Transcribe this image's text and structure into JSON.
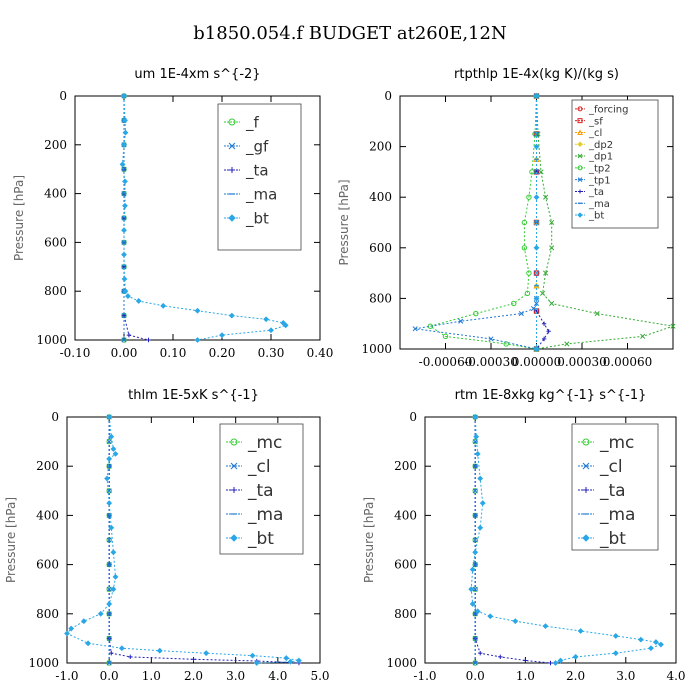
{
  "figure": {
    "title": "b1850.054.f  BUDGET at260E,12N"
  },
  "chart_data": [
    {
      "type": "line",
      "title": "um   1E-4xm s^{-2}",
      "ylabel": "Pressure [hPa]",
      "xlim": [
        -0.1,
        0.4
      ],
      "ylim": [
        1000,
        0
      ],
      "xticks": [
        "-0.10",
        "0.00",
        "0.10",
        "0.20",
        "0.30",
        "0.40"
      ],
      "yticks": [
        "0",
        "200",
        "400",
        "600",
        "800",
        "1000"
      ],
      "legend_position": "top-right",
      "series": [
        {
          "name": "_f",
          "color": "#33cc33",
          "marker": "circle",
          "x": [
            0.0,
            0.0,
            0.0,
            0.0,
            0.0,
            0.0,
            0.0,
            0.0,
            0.0,
            0.0,
            0.0
          ],
          "y": [
            0,
            100,
            200,
            300,
            400,
            500,
            600,
            700,
            800,
            900,
            1000
          ]
        },
        {
          "name": "_gf",
          "color": "#1f77d4",
          "marker": "x",
          "x": [
            0.0,
            0.0,
            0.0,
            0.0,
            0.0,
            0.0,
            0.0,
            0.0,
            0.0,
            0.0,
            0.0
          ],
          "y": [
            0,
            100,
            200,
            300,
            400,
            500,
            600,
            700,
            800,
            900,
            1000
          ]
        },
        {
          "name": "_ta",
          "color": "#2222bb",
          "marker": "plus",
          "x": [
            0.0,
            0.0,
            0.0,
            0.0,
            0.0,
            0.0,
            0.0,
            0.0,
            0.0,
            0.0,
            0.01,
            0.05
          ],
          "y": [
            0,
            100,
            200,
            300,
            400,
            500,
            600,
            700,
            800,
            900,
            980,
            1000
          ]
        },
        {
          "name": "_ma",
          "color": "#1f77d4",
          "marker": "dash",
          "x": [
            0.0,
            0.0,
            0.0,
            0.0,
            0.0,
            0.0
          ],
          "y": [
            0,
            200,
            400,
            600,
            800,
            1000
          ]
        },
        {
          "name": "_bt",
          "color": "#2aa7e6",
          "marker": "diamond",
          "x": [
            0.0,
            0.002,
            0.003,
            0.0,
            -0.003,
            0.002,
            0.002,
            0.0,
            0.0,
            0.001,
            0.003,
            0.008,
            0.03,
            0.08,
            0.15,
            0.22,
            0.29,
            0.325,
            0.33,
            0.3,
            0.2,
            0.15
          ],
          "y": [
            0,
            100,
            150,
            200,
            280,
            350,
            450,
            550,
            650,
            750,
            800,
            820,
            840,
            860,
            880,
            900,
            915,
            930,
            940,
            960,
            980,
            1000
          ]
        }
      ]
    },
    {
      "type": "line",
      "title": "rtpthlp   1E-4x(kg K)/(kg s)",
      "ylabel": "Pressure [hPa]",
      "xlim": [
        -0.0009,
        0.0009
      ],
      "ylim": [
        1000,
        0
      ],
      "xticks": [
        "-0.00060",
        "-0.00030",
        "0.00000",
        "0.00030",
        "0.00060"
      ],
      "yticks": [
        "0",
        "200",
        "400",
        "600",
        "800",
        "1000"
      ],
      "legend_position": "top-right",
      "series": [
        {
          "name": "_forcing",
          "color": "#dd2222",
          "marker": "circle",
          "x": [
            0,
            0,
            0,
            0,
            0,
            0,
            0
          ],
          "y": [
            0,
            150,
            300,
            500,
            700,
            850,
            1000
          ]
        },
        {
          "name": "_sf",
          "color": "#dd2222",
          "marker": "square",
          "x": [
            0,
            0,
            0,
            0,
            0,
            0,
            0
          ],
          "y": [
            0,
            150,
            300,
            500,
            700,
            850,
            1000
          ]
        },
        {
          "name": "_cl",
          "color": "#ff9900",
          "marker": "triangle",
          "x": [
            0,
            0,
            0,
            0,
            0
          ],
          "y": [
            0,
            250,
            500,
            750,
            1000
          ]
        },
        {
          "name": "_dp2",
          "color": "#ddcc33",
          "marker": "diamond",
          "x": [
            0,
            0,
            0,
            0,
            0
          ],
          "y": [
            0,
            250,
            500,
            750,
            1000
          ]
        },
        {
          "name": "_dp1",
          "color": "#33aa33",
          "marker": "x",
          "x": [
            0.0,
            1e-05,
            3e-05,
            6e-05,
            0.0001,
            0.0001,
            6e-05,
            4e-05,
            0.0001,
            0.0004,
            0.0009,
            0.0007,
            0.0002,
            0.0
          ],
          "y": [
            0,
            150,
            300,
            400,
            500,
            600,
            700,
            780,
            820,
            860,
            910,
            950,
            980,
            1000
          ]
        },
        {
          "name": "_tp2",
          "color": "#33cc33",
          "marker": "circle",
          "x": [
            0.0,
            -1e-05,
            -3e-05,
            -5e-05,
            -8e-05,
            -8e-05,
            -5e-05,
            -6e-05,
            -0.00015,
            -0.0004,
            -0.0007,
            -0.0006,
            -0.0002,
            0.0
          ],
          "y": [
            0,
            150,
            300,
            400,
            500,
            600,
            700,
            780,
            820,
            860,
            910,
            950,
            980,
            1000
          ]
        },
        {
          "name": "_tp1",
          "color": "#1f77d4",
          "marker": "x",
          "x": [
            0.0,
            0.0,
            0.0,
            0.0,
            0.0,
            0.0,
            0.0,
            -2e-05,
            -0.0001,
            -0.0005,
            -0.0008,
            -0.0003,
            0.0
          ],
          "y": [
            0,
            150,
            300,
            500,
            700,
            800,
            820,
            840,
            860,
            890,
            920,
            960,
            1000
          ]
        },
        {
          "name": "_ta",
          "color": "#2222bb",
          "marker": "plus",
          "x": [
            0.0,
            0.0,
            0.0,
            0.0,
            5e-05,
            8e-05,
            5e-05,
            0.0
          ],
          "y": [
            0,
            300,
            600,
            850,
            900,
            930,
            960,
            1000
          ]
        },
        {
          "name": "_ma",
          "color": "#1f77d4",
          "marker": "dash",
          "x": [
            0,
            0,
            0,
            0,
            0
          ],
          "y": [
            0,
            250,
            500,
            750,
            1000
          ]
        },
        {
          "name": "_bt",
          "color": "#2aa7e6",
          "marker": "diamond",
          "x": [
            0,
            0,
            0,
            0,
            0,
            0
          ],
          "y": [
            0,
            200,
            400,
            600,
            800,
            1000
          ]
        }
      ]
    },
    {
      "type": "line",
      "title": "thlm   1E-5xK  s^{-1}",
      "ylabel": "Pressure [hPa]",
      "xlim": [
        -1.0,
        5.0
      ],
      "ylim": [
        1000,
        0
      ],
      "xticks": [
        "-1.0",
        "0.0",
        "1.0",
        "2.0",
        "3.0",
        "4.0",
        "5.0"
      ],
      "yticks": [
        "0",
        "200",
        "400",
        "600",
        "800",
        "1000"
      ],
      "legend_position": "top-right",
      "series": [
        {
          "name": "_mc",
          "color": "#33cc33",
          "marker": "circle",
          "x": [
            0,
            0,
            0,
            0,
            0,
            0,
            0,
            0,
            0,
            0,
            0
          ],
          "y": [
            0,
            100,
            200,
            300,
            400,
            500,
            600,
            700,
            800,
            900,
            1000
          ]
        },
        {
          "name": "_cl",
          "color": "#1f77d4",
          "marker": "x",
          "x": [
            0,
            0,
            0,
            0,
            0,
            0,
            0,
            0,
            0,
            0,
            0
          ],
          "y": [
            0,
            100,
            200,
            300,
            400,
            500,
            600,
            700,
            800,
            900,
            1000
          ]
        },
        {
          "name": "_ta",
          "color": "#2222bb",
          "marker": "plus",
          "x": [
            0.0,
            0.0,
            0.0,
            0.0,
            0.0,
            0.0,
            0.05,
            0.5,
            2.0,
            3.5,
            4.5
          ],
          "y": [
            0,
            200,
            400,
            600,
            800,
            900,
            960,
            975,
            985,
            992,
            1000
          ]
        },
        {
          "name": "_ma",
          "color": "#1f77d4",
          "marker": "dash",
          "x": [
            0,
            0,
            0,
            0,
            0,
            0
          ],
          "y": [
            0,
            200,
            400,
            600,
            800,
            1000
          ]
        },
        {
          "name": "_bt",
          "color": "#2aa7e6",
          "marker": "diamond",
          "x": [
            0.0,
            0.05,
            0.1,
            0.15,
            0.0,
            -0.05,
            0.0,
            0.05,
            0.1,
            0.15,
            0.1,
            0.0,
            -0.2,
            -0.6,
            -0.9,
            -1.0,
            -0.5,
            0.3,
            1.2,
            2.3,
            3.4,
            4.2,
            4.5,
            4.3,
            3.5
          ],
          "y": [
            0,
            80,
            130,
            150,
            170,
            250,
            350,
            450,
            550,
            650,
            700,
            760,
            800,
            830,
            860,
            880,
            920,
            940,
            950,
            960,
            970,
            980,
            990,
            995,
            1000
          ]
        }
      ]
    },
    {
      "type": "line",
      "title": "rtm   1E-8xkg  kg^{-1} s^{-1}",
      "ylabel": "Pressure [hPa]",
      "xlim": [
        -1.0,
        4.0
      ],
      "ylim": [
        1000,
        0
      ],
      "xticks": [
        "-1.0",
        "0.0",
        "1.0",
        "2.0",
        "3.0",
        "4.0"
      ],
      "yticks": [
        "0",
        "200",
        "400",
        "600",
        "800",
        "1000"
      ],
      "legend_position": "top-right",
      "series": [
        {
          "name": "_mc",
          "color": "#33cc33",
          "marker": "circle",
          "x": [
            0,
            0,
            0,
            0,
            0,
            0,
            0,
            0,
            0,
            0,
            0
          ],
          "y": [
            0,
            100,
            200,
            300,
            400,
            500,
            600,
            700,
            800,
            900,
            1000
          ]
        },
        {
          "name": "_cl",
          "color": "#1f77d4",
          "marker": "x",
          "x": [
            0,
            0,
            0,
            0,
            0,
            0,
            0,
            0,
            0,
            0,
            0
          ],
          "y": [
            0,
            100,
            200,
            300,
            400,
            500,
            600,
            700,
            800,
            900,
            1000
          ]
        },
        {
          "name": "_ta",
          "color": "#2222bb",
          "marker": "plus",
          "x": [
            0.0,
            0.0,
            0.0,
            0.0,
            0.0,
            0.0,
            0.1,
            0.5,
            1.0,
            1.5
          ],
          "y": [
            0,
            200,
            400,
            600,
            800,
            900,
            960,
            975,
            990,
            1000
          ]
        },
        {
          "name": "_ma",
          "color": "#1f77d4",
          "marker": "dash",
          "x": [
            0,
            0,
            0,
            0,
            0,
            0
          ],
          "y": [
            0,
            200,
            400,
            600,
            800,
            1000
          ]
        },
        {
          "name": "_bt",
          "color": "#2aa7e6",
          "marker": "diamond",
          "x": [
            0.0,
            0.02,
            0.05,
            0.1,
            0.15,
            0.1,
            0.0,
            -0.05,
            -0.08,
            -0.05,
            0.05,
            0.3,
            0.8,
            1.4,
            2.1,
            2.8,
            3.3,
            3.6,
            3.7,
            3.5,
            2.8,
            2.0,
            1.7,
            1.6
          ],
          "y": [
            0,
            80,
            150,
            250,
            350,
            450,
            550,
            620,
            700,
            760,
            790,
            810,
            830,
            850,
            870,
            890,
            905,
            915,
            925,
            940,
            960,
            975,
            990,
            1000
          ]
        }
      ]
    }
  ]
}
